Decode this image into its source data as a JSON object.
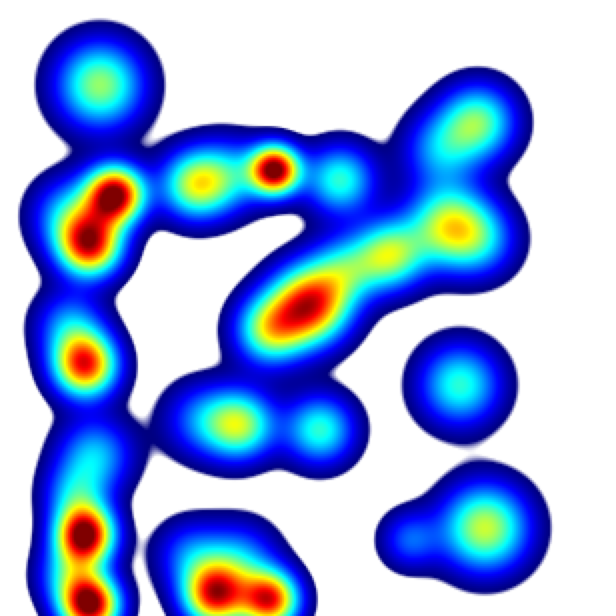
{
  "heatmap": {
    "background": "#ffffff",
    "colormap": [
      "#00007f",
      "#0000ff",
      "#0080ff",
      "#00ffff",
      "#80ff80",
      "#ffff00",
      "#ff8000",
      "#ff0000",
      "#7f0000"
    ]
  }
}
